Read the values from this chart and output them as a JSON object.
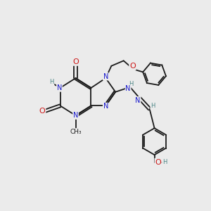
{
  "bg_color": "#ebebeb",
  "bond_color": "#1a1a1a",
  "N_color": "#1515cc",
  "O_color": "#cc1515",
  "H_color": "#4a8585",
  "font_size": 7.0,
  "figsize": [
    3.0,
    3.0
  ],
  "dpi": 100,
  "xlim": [
    0,
    10
  ],
  "ylim": [
    0,
    10
  ],
  "lw": 1.3
}
